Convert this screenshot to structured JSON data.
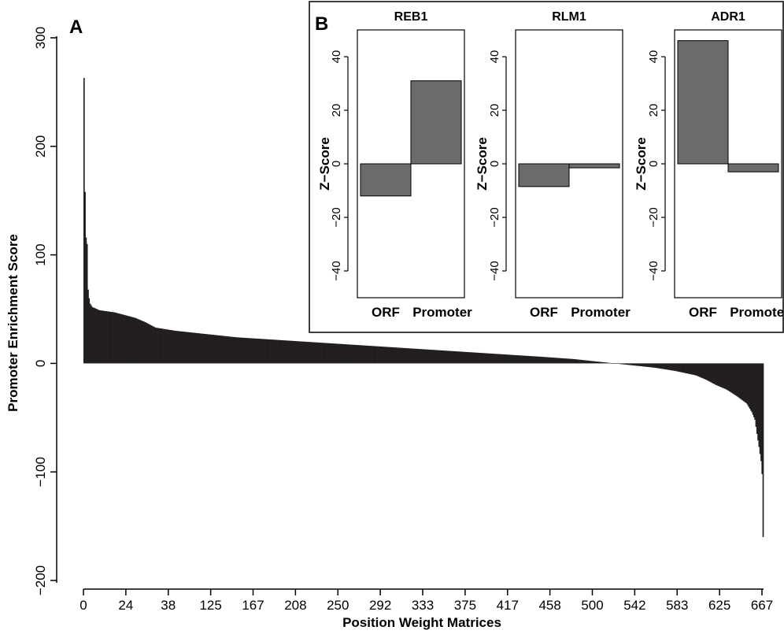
{
  "chart_data": [
    {
      "type": "bar",
      "panel": "A",
      "xlabel": "Position Weight Matrices",
      "ylabel": "Promoter Enrichment Score",
      "ylim": [
        -200,
        300
      ],
      "yticks": [
        -200,
        -100,
        0,
        100,
        200,
        300
      ],
      "xticks": [
        "0",
        "24",
        "38",
        "125",
        "167",
        "208",
        "250",
        "292",
        "333",
        "375",
        "417",
        "458",
        "500",
        "542",
        "583",
        "625",
        "667"
      ],
      "n_bars": 667,
      "values_sorted_desc": [
        [
          0,
          263
        ],
        [
          1,
          158
        ],
        [
          2,
          116
        ],
        [
          3,
          110
        ],
        [
          4,
          68
        ],
        [
          5,
          60
        ],
        [
          6,
          55
        ],
        [
          8,
          52
        ],
        [
          15,
          49
        ],
        [
          30,
          47
        ],
        [
          50,
          42
        ],
        [
          60,
          38
        ],
        [
          70,
          33
        ],
        [
          90,
          30
        ],
        [
          120,
          27
        ],
        [
          150,
          24
        ],
        [
          200,
          21
        ],
        [
          250,
          18
        ],
        [
          300,
          15
        ],
        [
          350,
          12
        ],
        [
          400,
          9
        ],
        [
          450,
          6
        ],
        [
          480,
          4
        ],
        [
          500,
          2
        ],
        [
          520,
          0
        ],
        [
          540,
          -2
        ],
        [
          560,
          -4
        ],
        [
          580,
          -7
        ],
        [
          600,
          -11
        ],
        [
          610,
          -15
        ],
        [
          620,
          -20
        ],
        [
          630,
          -24
        ],
        [
          640,
          -30
        ],
        [
          650,
          -37
        ],
        [
          655,
          -45
        ],
        [
          658,
          -52
        ],
        [
          660,
          -65
        ],
        [
          662,
          -77
        ],
        [
          664,
          -90
        ],
        [
          665,
          -102
        ],
        [
          666,
          -160
        ]
      ],
      "grid": false
    },
    {
      "type": "bar",
      "panel": "B",
      "title": "REB1",
      "categories": [
        "ORF",
        "Promoter"
      ],
      "values": [
        -12,
        31
      ],
      "ylabel": "Z−Score",
      "ylim": [
        -50,
        50
      ],
      "yticks": [
        "40",
        "20",
        "0",
        "−20",
        "−40"
      ]
    },
    {
      "type": "bar",
      "panel": "B",
      "title": "RLM1",
      "categories": [
        "ORF",
        "Promoter"
      ],
      "values": [
        -8.5,
        -1.5
      ],
      "ylabel": "Z−Score",
      "ylim": [
        -50,
        50
      ],
      "yticks": [
        "40",
        "20",
        "0",
        "−20",
        "−40"
      ]
    },
    {
      "type": "bar",
      "panel": "B",
      "title": "ADR1",
      "categories": [
        "ORF",
        "Promoter"
      ],
      "values": [
        46,
        -3
      ],
      "ylabel": "Z−Score",
      "ylim": [
        -50,
        50
      ],
      "yticks": [
        "40",
        "20",
        "0",
        "−20",
        "−40"
      ]
    }
  ],
  "labels": {
    "panel_a": "A",
    "panel_b": "B",
    "main_yticks": [
      "−200",
      "−100",
      "0",
      "100",
      "200",
      "300"
    ],
    "category_caption": "ORF Promoter"
  },
  "colors": {
    "main_bar": "#231f20",
    "inset_bar": "#6b6b6b",
    "axis": "#000000"
  }
}
